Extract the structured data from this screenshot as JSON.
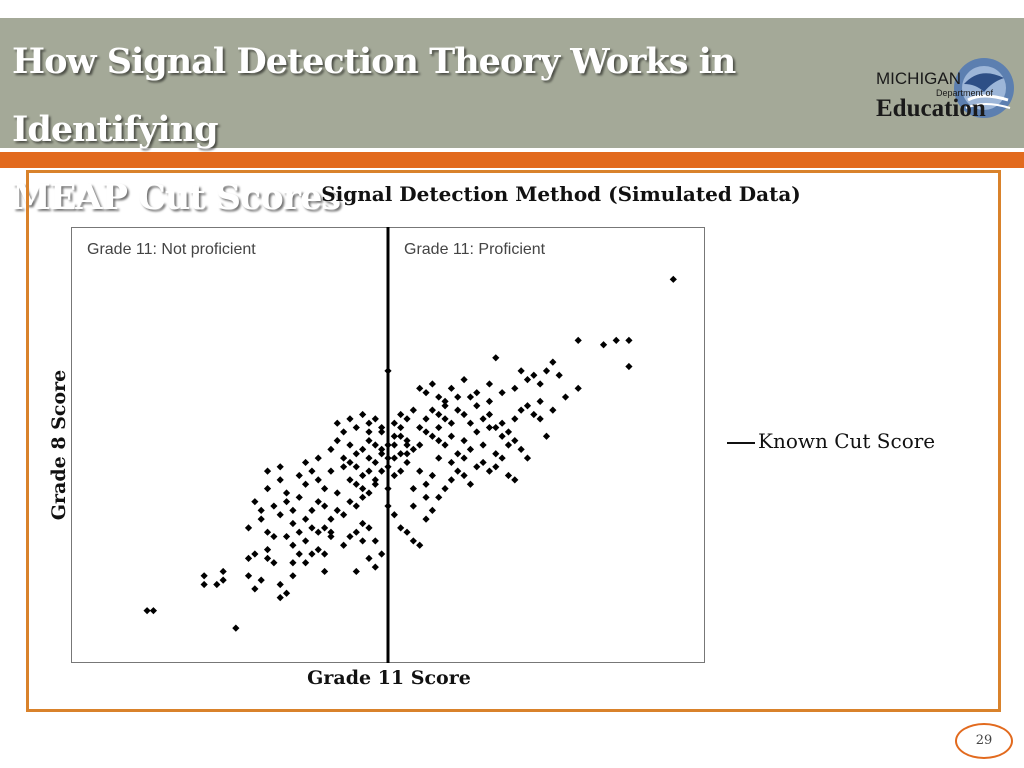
{
  "slide": {
    "title_lines": [
      "How Signal Detection Theory Works in Identifying",
      "MEAP Cut Scores"
    ],
    "page_number": "29"
  },
  "logo": {
    "line1": "MICHIGAN",
    "line2": "Department of",
    "line3": "Education",
    "icon": "michigan-state-swoosh-icon"
  },
  "colors": {
    "header_bg": "#a4a998",
    "accent": "#e26a1e",
    "frame_border": "#d9822b",
    "marker": "#000000"
  },
  "chart_data": {
    "type": "scatter",
    "title": "Signal Detection Method (Simulated Data)",
    "xlabel": "Grade 11 Score",
    "ylabel": "Grade 8 Score",
    "axes_ticks_shown": false,
    "grid": false,
    "regions": [
      {
        "label": "Grade 11: Not proficient",
        "side": "left"
      },
      {
        "label": "Grade 11: Proficient",
        "side": "right"
      }
    ],
    "cut_line": {
      "x": 50,
      "legend_label": "Known Cut Score"
    },
    "legend_position": "right",
    "xlim": [
      0,
      100
    ],
    "ylim": [
      0,
      100
    ],
    "marker": "diamond",
    "points": [
      [
        12,
        12
      ],
      [
        13,
        12
      ],
      [
        26,
        8
      ],
      [
        24,
        21
      ],
      [
        21,
        18
      ],
      [
        23,
        18
      ],
      [
        21,
        20
      ],
      [
        24,
        19
      ],
      [
        28,
        20
      ],
      [
        30,
        19
      ],
      [
        29,
        17
      ],
      [
        33,
        18
      ],
      [
        34,
        16
      ],
      [
        33,
        15
      ],
      [
        35,
        20
      ],
      [
        28,
        24
      ],
      [
        29,
        25
      ],
      [
        31,
        24
      ],
      [
        32,
        23
      ],
      [
        31,
        26
      ],
      [
        35,
        23
      ],
      [
        37,
        23
      ],
      [
        40,
        21
      ],
      [
        45,
        21
      ],
      [
        48,
        22
      ],
      [
        49,
        25
      ],
      [
        47,
        24
      ],
      [
        28,
        31
      ],
      [
        31,
        30
      ],
      [
        32,
        29
      ],
      [
        35,
        27
      ],
      [
        36,
        25
      ],
      [
        37,
        28
      ],
      [
        38,
        25
      ],
      [
        39,
        26
      ],
      [
        40,
        31
      ],
      [
        41,
        30
      ],
      [
        43,
        27
      ],
      [
        44,
        29
      ],
      [
        45,
        30
      ],
      [
        46,
        32
      ],
      [
        47,
        31
      ],
      [
        48,
        28
      ],
      [
        46,
        28
      ],
      [
        32,
        36
      ],
      [
        33,
        34
      ],
      [
        34,
        37
      ],
      [
        35,
        35
      ],
      [
        36,
        38
      ],
      [
        37,
        33
      ],
      [
        38,
        35
      ],
      [
        39,
        37
      ],
      [
        40,
        36
      ],
      [
        41,
        33
      ],
      [
        42,
        35
      ],
      [
        43,
        34
      ],
      [
        44,
        37
      ],
      [
        45,
        36
      ],
      [
        46,
        38
      ],
      [
        47,
        39
      ],
      [
        48,
        41
      ],
      [
        29,
        37
      ],
      [
        30,
        35
      ],
      [
        31,
        40
      ],
      [
        33,
        42
      ],
      [
        34,
        39
      ],
      [
        36,
        43
      ],
      [
        37,
        41
      ],
      [
        38,
        44
      ],
      [
        39,
        42
      ],
      [
        40,
        40
      ],
      [
        41,
        44
      ],
      [
        42,
        39
      ],
      [
        43,
        45
      ],
      [
        44,
        42
      ],
      [
        45,
        41
      ],
      [
        46,
        43
      ],
      [
        47,
        44
      ],
      [
        48,
        46
      ],
      [
        49,
        44
      ],
      [
        50,
        45
      ],
      [
        51,
        43
      ],
      [
        52,
        44
      ],
      [
        53,
        46
      ],
      [
        54,
        40
      ],
      [
        55,
        44
      ],
      [
        56,
        41
      ],
      [
        57,
        43
      ],
      [
        50,
        36
      ],
      [
        51,
        34
      ],
      [
        52,
        31
      ],
      [
        53,
        30
      ],
      [
        54,
        28
      ],
      [
        55,
        27
      ],
      [
        56,
        33
      ],
      [
        57,
        35
      ],
      [
        58,
        38
      ],
      [
        59,
        40
      ],
      [
        60,
        42
      ],
      [
        61,
        44
      ],
      [
        62,
        43
      ],
      [
        63,
        41
      ],
      [
        64,
        45
      ],
      [
        65,
        46
      ],
      [
        66,
        44
      ],
      [
        67,
        45
      ],
      [
        68,
        47
      ],
      [
        69,
        43
      ],
      [
        70,
        42
      ],
      [
        44,
        50
      ],
      [
        45,
        48
      ],
      [
        46,
        49
      ],
      [
        47,
        51
      ],
      [
        48,
        50
      ],
      [
        49,
        49
      ],
      [
        51,
        50
      ],
      [
        52,
        52
      ],
      [
        53,
        51
      ],
      [
        54,
        49
      ],
      [
        55,
        50
      ],
      [
        56,
        53
      ],
      [
        57,
        52
      ],
      [
        58,
        51
      ],
      [
        59,
        50
      ],
      [
        60,
        52
      ],
      [
        61,
        48
      ],
      [
        62,
        51
      ],
      [
        63,
        49
      ],
      [
        64,
        53
      ],
      [
        65,
        50
      ],
      [
        66,
        54
      ],
      [
        67,
        48
      ],
      [
        68,
        52
      ],
      [
        69,
        50
      ],
      [
        70,
        51
      ],
      [
        71,
        49
      ],
      [
        72,
        47
      ],
      [
        44,
        56
      ],
      [
        45,
        54
      ],
      [
        46,
        57
      ],
      [
        47,
        55
      ],
      [
        48,
        56
      ],
      [
        49,
        54
      ],
      [
        51,
        55
      ],
      [
        52,
        57
      ],
      [
        53,
        56
      ],
      [
        54,
        58
      ],
      [
        55,
        54
      ],
      [
        56,
        56
      ],
      [
        57,
        58
      ],
      [
        58,
        57
      ],
      [
        59,
        56
      ],
      [
        60,
        55
      ],
      [
        61,
        58
      ],
      [
        62,
        57
      ],
      [
        63,
        55
      ],
      [
        64,
        59
      ],
      [
        65,
        56
      ],
      [
        66,
        57
      ],
      [
        67,
        54
      ],
      [
        68,
        55
      ],
      [
        69,
        53
      ],
      [
        70,
        56
      ],
      [
        71,
        58
      ],
      [
        72,
        59
      ],
      [
        73,
        57
      ],
      [
        74,
        56
      ],
      [
        75,
        52
      ],
      [
        76,
        58
      ],
      [
        78,
        61
      ],
      [
        80,
        63
      ],
      [
        55,
        63
      ],
      [
        56,
        62
      ],
      [
        57,
        64
      ],
      [
        58,
        61
      ],
      [
        59,
        60
      ],
      [
        60,
        63
      ],
      [
        62,
        65
      ],
      [
        64,
        62
      ],
      [
        66,
        64
      ],
      [
        68,
        62
      ],
      [
        70,
        63
      ],
      [
        72,
        65
      ],
      [
        74,
        64
      ],
      [
        73,
        66
      ],
      [
        75,
        67
      ],
      [
        76,
        69
      ],
      [
        77,
        66
      ],
      [
        74,
        60
      ],
      [
        50,
        67
      ],
      [
        42,
        51
      ],
      [
        41,
        49
      ],
      [
        39,
        47
      ],
      [
        43,
        47
      ],
      [
        44,
        46
      ],
      [
        45,
        45
      ],
      [
        47,
        47
      ],
      [
        49,
        48
      ],
      [
        50,
        47
      ],
      [
        51,
        47
      ],
      [
        52,
        48
      ],
      [
        53,
        48
      ],
      [
        31,
        44
      ],
      [
        33,
        45
      ],
      [
        30,
        33
      ],
      [
        35,
        32
      ],
      [
        38,
        31
      ],
      [
        39,
        30
      ],
      [
        41,
        29
      ],
      [
        37,
        46
      ],
      [
        42,
        55
      ],
      [
        43,
        53
      ],
      [
        47,
        53
      ],
      [
        49,
        53
      ],
      [
        48,
        42
      ],
      [
        46,
        40
      ],
      [
        50,
        40
      ],
      [
        54,
        36
      ],
      [
        56,
        38
      ],
      [
        58,
        47
      ],
      [
        60,
        46
      ],
      [
        62,
        47
      ],
      [
        34,
        29
      ],
      [
        36,
        30
      ],
      [
        40,
        25
      ],
      [
        50,
        50
      ],
      [
        51,
        52
      ],
      [
        52,
        54
      ],
      [
        53,
        50
      ],
      [
        58,
        54
      ],
      [
        59,
        59
      ],
      [
        61,
        61
      ],
      [
        63,
        61
      ],
      [
        66,
        60
      ],
      [
        67,
        70
      ],
      [
        71,
        67
      ],
      [
        80,
        74
      ],
      [
        84,
        73
      ],
      [
        86,
        74
      ],
      [
        88,
        74
      ],
      [
        88,
        68
      ],
      [
        95,
        88
      ]
    ]
  }
}
